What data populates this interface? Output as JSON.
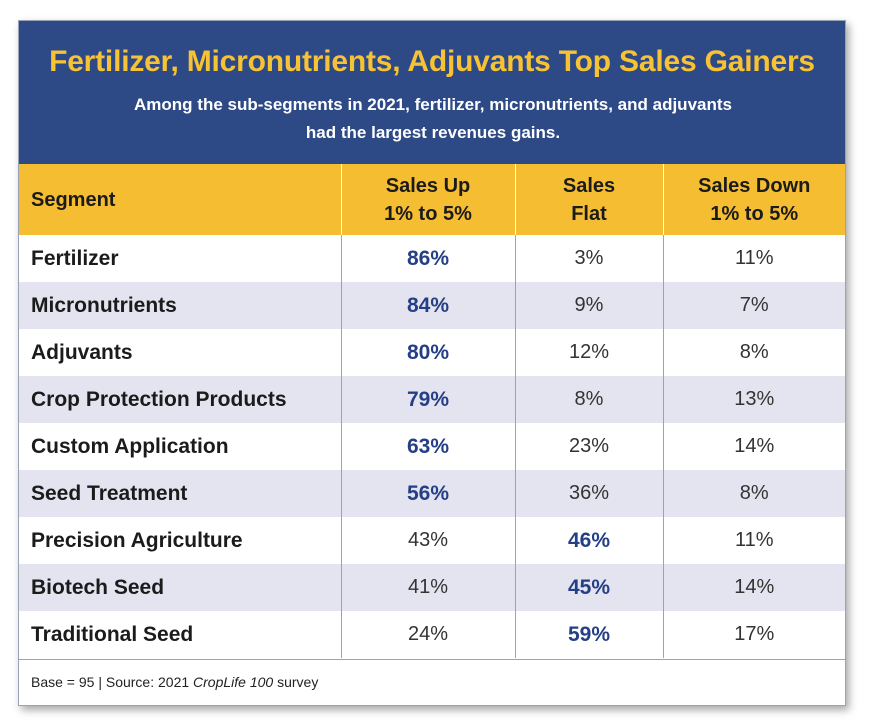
{
  "colors": {
    "header_bg": "#2e4a86",
    "title": "#f7c233",
    "column_header_bg": "#f5bd31",
    "highlight_value": "#243f86",
    "row_alt": "#e3e4ef"
  },
  "chart_data": {
    "type": "table",
    "title": "Fertilizer, Micronutrients, Adjuvants Top Sales Gainers",
    "subtitle_line1": "Among the sub-segments in 2021, fertilizer, micronutrients, and adjuvants",
    "subtitle_line2": "had the largest revenues gains.",
    "columns": [
      {
        "line1": "Segment",
        "line2": ""
      },
      {
        "line1": "Sales Up",
        "line2": "1% to 5%"
      },
      {
        "line1": "Sales",
        "line2": "Flat"
      },
      {
        "line1": "Sales Down",
        "line2": "1% to 5%"
      }
    ],
    "rows": [
      {
        "segment": "Fertilizer",
        "values": [
          "86%",
          "3%",
          "11%"
        ],
        "highlight": 0
      },
      {
        "segment": "Micronutrients",
        "values": [
          "84%",
          "9%",
          "7%"
        ],
        "highlight": 0
      },
      {
        "segment": "Adjuvants",
        "values": [
          "80%",
          "12%",
          "8%"
        ],
        "highlight": 0
      },
      {
        "segment": "Crop Protection Products",
        "values": [
          "79%",
          "8%",
          "13%"
        ],
        "highlight": 0
      },
      {
        "segment": "Custom Application",
        "values": [
          "63%",
          "23%",
          "14%"
        ],
        "highlight": 0
      },
      {
        "segment": "Seed Treatment",
        "values": [
          "56%",
          "36%",
          "8%"
        ],
        "highlight": 0
      },
      {
        "segment": "Precision Agriculture",
        "values": [
          "43%",
          "46%",
          "11%"
        ],
        "highlight": 1
      },
      {
        "segment": "Biotech Seed",
        "values": [
          "41%",
          "45%",
          "14%"
        ],
        "highlight": 1
      },
      {
        "segment": "Traditional Seed",
        "values": [
          "24%",
          "59%",
          "17%"
        ],
        "highlight": 1
      }
    ],
    "footer": {
      "prefix": "Base = 95  |  Source: 2021 ",
      "italic": "CropLife 100",
      "suffix": " survey"
    }
  }
}
